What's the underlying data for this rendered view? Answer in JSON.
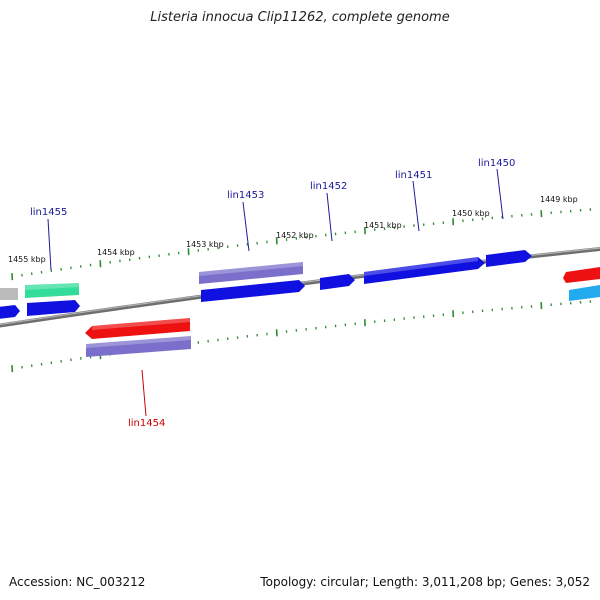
{
  "title": "Listeria innocua Clip11262, complete genome",
  "footer": {
    "accession": "Accession: NC_003212",
    "summary": "Topology: circular; Length: 3,011,208 bp; Genes: 3,052"
  },
  "colors": {
    "backbone": "#8a8a8a",
    "tick": "#2e8b2e",
    "label_forward": "#1a1a9a",
    "label_reverse": "#cc0000",
    "gene_blue": "#1010e0",
    "gene_purple": "#7a70cc",
    "gene_red": "#ee1111",
    "gene_green": "#33dd99",
    "gene_cyan": "#22aaee",
    "gene_grey": "#bbbbbb"
  },
  "scale": {
    "unit": "kbp",
    "labels": [
      "1455 kbp",
      "1454 kbp",
      "1453 kbp",
      "1452 kbp",
      "1451 kbp",
      "1450 kbp",
      "1449 kbp"
    ]
  },
  "gene_labels": [
    {
      "name": "lin1455",
      "strand": "forward"
    },
    {
      "name": "lin1454",
      "strand": "reverse"
    },
    {
      "name": "lin1453",
      "strand": "forward"
    },
    {
      "name": "lin1452",
      "strand": "forward"
    },
    {
      "name": "lin1451",
      "strand": "forward"
    },
    {
      "name": "lin1450",
      "strand": "forward"
    }
  ]
}
